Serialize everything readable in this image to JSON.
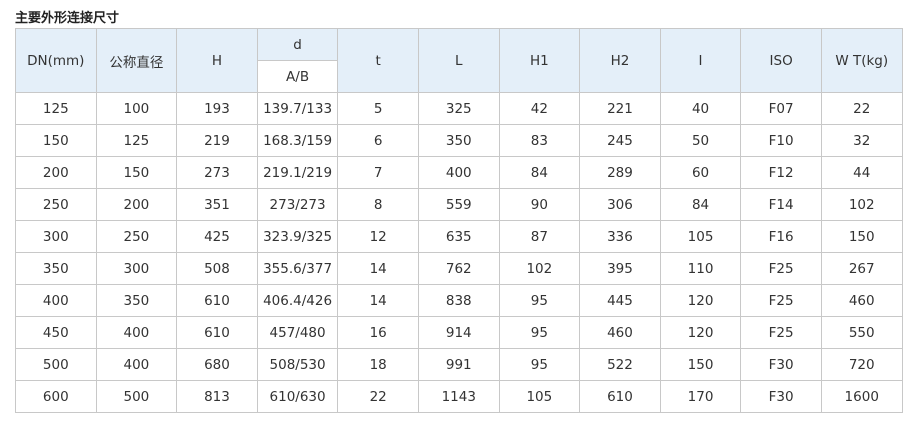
{
  "title": "主要外形连接尺寸",
  "header": {
    "dn": "DN(mm)",
    "nominal": "公称直径",
    "h": "H",
    "d": "d",
    "ab": "A/B",
    "t": "t",
    "l": "L",
    "h1": "H1",
    "h2": "H2",
    "i": "I",
    "iso": "ISO",
    "wt": "W T(kg)"
  },
  "colors": {
    "header_bg": "#e4eff9",
    "border": "#c8c8c8"
  },
  "rows": [
    [
      "125",
      "100",
      "193",
      "139.7/133",
      "5",
      "325",
      "42",
      "221",
      "40",
      "F07",
      "22"
    ],
    [
      "150",
      "125",
      "219",
      "168.3/159",
      "6",
      "350",
      "83",
      "245",
      "50",
      "F10",
      "32"
    ],
    [
      "200",
      "150",
      "273",
      "219.1/219",
      "7",
      "400",
      "84",
      "289",
      "60",
      "F12",
      "44"
    ],
    [
      "250",
      "200",
      "351",
      "273/273",
      "8",
      "559",
      "90",
      "306",
      "84",
      "F14",
      "102"
    ],
    [
      "300",
      "250",
      "425",
      "323.9/325",
      "12",
      "635",
      "87",
      "336",
      "105",
      "F16",
      "150"
    ],
    [
      "350",
      "300",
      "508",
      "355.6/377",
      "14",
      "762",
      "102",
      "395",
      "110",
      "F25",
      "267"
    ],
    [
      "400",
      "350",
      "610",
      "406.4/426",
      "14",
      "838",
      "95",
      "445",
      "120",
      "F25",
      "460"
    ],
    [
      "450",
      "400",
      "610",
      "457/480",
      "16",
      "914",
      "95",
      "460",
      "120",
      "F25",
      "550"
    ],
    [
      "500",
      "400",
      "680",
      "508/530",
      "18",
      "991",
      "95",
      "522",
      "150",
      "F30",
      "720"
    ],
    [
      "600",
      "500",
      "813",
      "610/630",
      "22",
      "1143",
      "105",
      "610",
      "170",
      "F30",
      "1600"
    ]
  ]
}
